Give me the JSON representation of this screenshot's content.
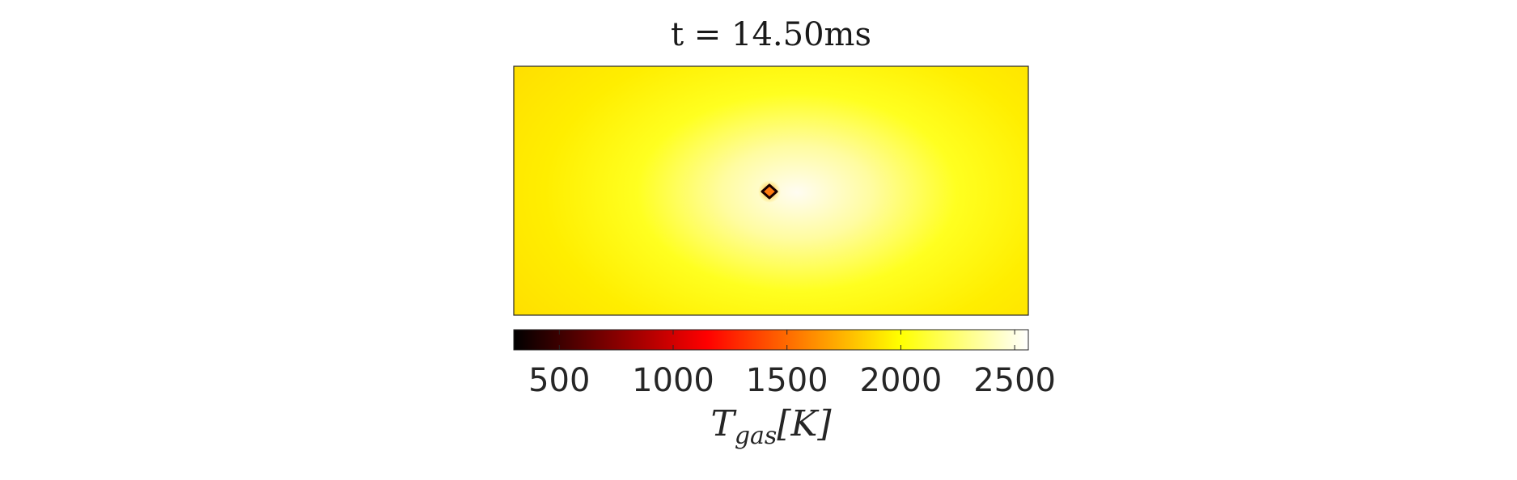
{
  "chart_data": {
    "type": "heatmap",
    "title": "t = 14.50ms",
    "colormap": "hot",
    "colorbar": {
      "orientation": "horizontal",
      "placement": "bottom",
      "range": [
        300,
        2560
      ],
      "ticks": [
        500,
        1000,
        1500,
        2000,
        2500
      ],
      "tick_labels": [
        "500",
        "1000",
        "1500",
        "2000",
        "2500"
      ],
      "label": {
        "main": "T",
        "subscript": "gas",
        "unit": "[K]"
      }
    },
    "field": {
      "background_temperature_range": [
        2050,
        2560
      ],
      "hot_zone": "near center, slightly right of the particle",
      "particle": "small cold droplet at center, outlined",
      "colors": {
        "particle_core": "#ff6a00",
        "particle_edge": "#1a0000"
      }
    },
    "axes_visible": false,
    "grid": false
  }
}
